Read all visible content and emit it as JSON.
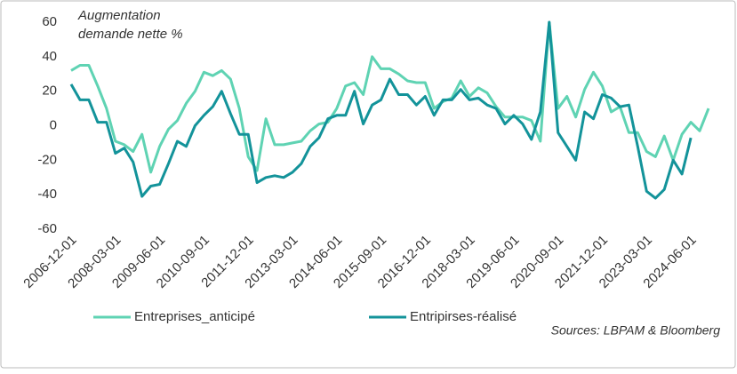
{
  "chart_data": {
    "type": "line",
    "y_label_lines": [
      "Augmentation",
      "demande nette %"
    ],
    "source": "Sources: LBPAM & Bloomberg",
    "categories": [
      "2006-12-01",
      null,
      null,
      null,
      null,
      "2008-03-01",
      null,
      null,
      null,
      null,
      "2009-06-01",
      null,
      null,
      null,
      null,
      "2010-09-01",
      null,
      null,
      null,
      null,
      "2011-12-01",
      null,
      null,
      null,
      null,
      "2013-03-01",
      null,
      null,
      null,
      null,
      "2014-06-01",
      null,
      null,
      null,
      null,
      "2015-09-01",
      null,
      null,
      null,
      null,
      "2016-12-01",
      null,
      null,
      null,
      null,
      "2018-03-01",
      null,
      null,
      null,
      null,
      "2019-06-01",
      null,
      null,
      null,
      null,
      "2020-09-01",
      null,
      null,
      null,
      null,
      "2021-12-01",
      null,
      null,
      null,
      null,
      "2023-03-01",
      null,
      null,
      null,
      null,
      "2024-06-01",
      null,
      null
    ],
    "series": [
      {
        "name": "Entreprises_anticipé",
        "color": "#5fd3b3",
        "values": [
          32,
          35,
          35,
          23,
          10,
          -9,
          -11,
          -15,
          -5,
          -27,
          -12,
          -2,
          3,
          13,
          20,
          31,
          29,
          32,
          27,
          10,
          -18,
          -26,
          4,
          -11,
          -11,
          -10,
          -9,
          -3,
          1,
          2,
          10,
          23,
          25,
          18,
          40,
          33,
          33,
          30,
          26,
          25,
          25,
          10,
          14,
          16,
          26,
          17,
          22,
          19,
          11,
          5,
          5,
          5,
          3,
          -9,
          60,
          10,
          17,
          5,
          21,
          31,
          23,
          8,
          11,
          -4,
          -4,
          -15,
          -18,
          -6,
          -20,
          -5,
          2,
          -3,
          10
        ]
      },
      {
        "name": "Entripirses-réalisé",
        "color": "#13939a",
        "values": [
          24,
          15,
          15,
          2,
          2,
          -16,
          -13,
          -21,
          -41,
          -35,
          -34,
          -22,
          -9,
          -12,
          0,
          6,
          11,
          20,
          7,
          -5,
          -5,
          -33,
          -30,
          -29,
          -30,
          -27,
          -22,
          -12,
          -7,
          4,
          6,
          6,
          20,
          1,
          12,
          15,
          27,
          18,
          18,
          12,
          17,
          6,
          15,
          15,
          21,
          15,
          16,
          12,
          10,
          1,
          6,
          1,
          -8,
          8,
          60,
          -4,
          -12,
          -20,
          8,
          4,
          18,
          16,
          11,
          12,
          -12,
          -38,
          -42,
          -37,
          -20,
          -28,
          -7,
          null,
          null
        ]
      }
    ],
    "ylim": [
      -60,
      60
    ],
    "yticks": [
      -60,
      -40,
      -20,
      0,
      20,
      40,
      60
    ],
    "grid": false
  }
}
